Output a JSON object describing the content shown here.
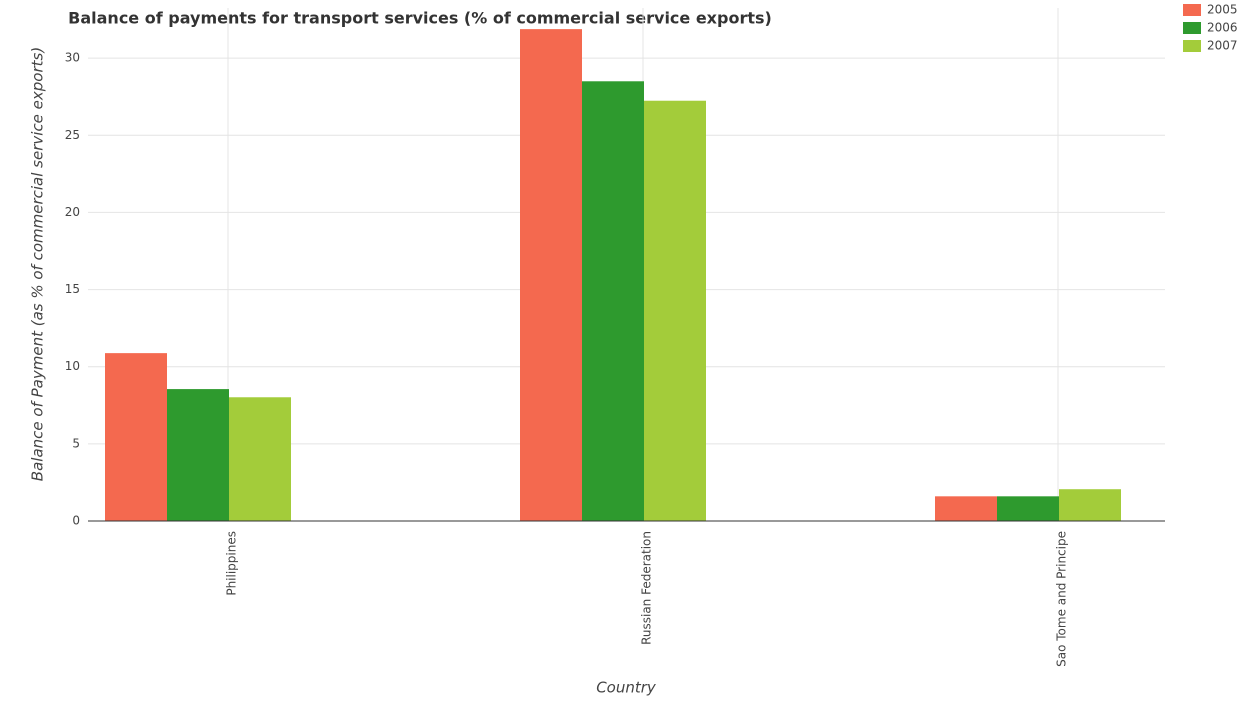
{
  "chart_data": {
    "type": "bar",
    "title": "Balance of payments for transport services (% of commercial service exports)",
    "x_label": "Country",
    "y_label": "Balance of Payment (as % of commercial service exports)",
    "categories": [
      "Philippines",
      "Russian Federation",
      "Sao Tome and Principe"
    ],
    "series": [
      {
        "name": "2005",
        "color": "#f4694f",
        "values": [
          10.88,
          31.88,
          1.6
        ]
      },
      {
        "name": "2006",
        "color": "#2e9a2e",
        "values": [
          8.55,
          28.5,
          1.6
        ]
      },
      {
        "name": "2007",
        "color": "#a3cc3a",
        "values": [
          8.02,
          27.24,
          2.06
        ]
      }
    ],
    "ylim": [
      0,
      33.25
    ],
    "yticks": [
      0,
      5,
      10,
      15,
      20,
      25,
      30
    ],
    "grid": true,
    "legend": "upper right"
  }
}
